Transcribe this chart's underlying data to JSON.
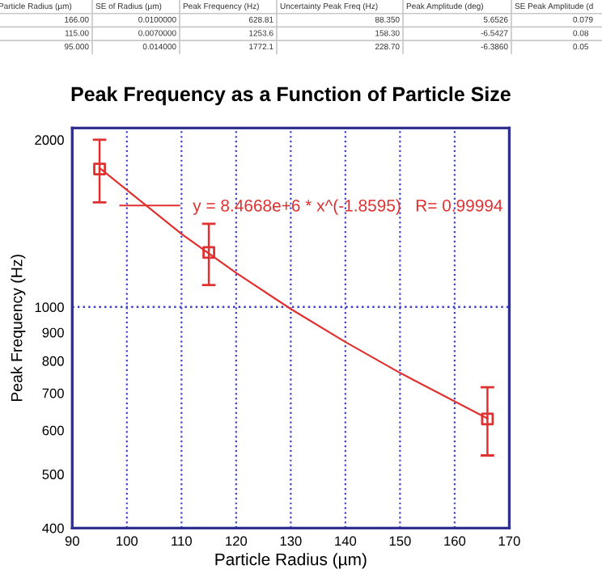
{
  "chart_data": [
    {
      "type": "other",
      "categories": [
        "Particle Radius (µm)",
        "SE of Radius (µm)",
        "Peak Frequency (Hz)",
        "Uncertainty Peak Freq (Hz)",
        "Peak Amplitude (deg)",
        "SE Peak Amplitude (d"
      ],
      "cell_labels": [
        [
          "166.00",
          "0.0100000",
          "628.81",
          "88.350",
          "5.6526",
          "0.079"
        ],
        [
          "115.00",
          "0.0070000",
          "1253.6",
          "158.30",
          "-6.5427",
          "0.08"
        ],
        [
          "95.000",
          "0.014000",
          "1772.1",
          "228.70",
          "-6.3860",
          "0.05"
        ]
      ]
    },
    {
      "type": "scatter",
      "title": "Peak Frequency as a Function of Particle Size",
      "xlabel": "Particle Radius (µm)",
      "ylabel": "Peak Frequency (Hz)",
      "log": "y",
      "xlim": [
        90,
        170
      ],
      "xticks": [
        90,
        100,
        110,
        120,
        130,
        140,
        150,
        160,
        170
      ],
      "ylim": [
        400,
        2100
      ],
      "yticks": [
        400,
        500,
        600,
        700,
        800,
        900,
        1000,
        2000
      ],
      "grid": "x",
      "legend": "top right",
      "ref_lines": [
        {
          "axis": "y",
          "value": 1000,
          "color": "#4040d0",
          "line_style": "dotted"
        }
      ],
      "series": [
        {
          "type": "scatter",
          "color": "#e03030",
          "marker": "square",
          "x": [
            166,
            115,
            95
          ],
          "values": [
            628.81,
            1253.6,
            1772.1
          ],
          "errors": [
            88.35,
            158.3,
            228.7
          ]
        },
        {
          "type": "line",
          "name": "y = 8.4668e+6 * x^(-1.8595)   R= 0.99994",
          "color": "#e03030",
          "marker": "none",
          "line_style": "solid",
          "x": [
            95,
            110,
            120,
            130,
            140,
            150,
            166
          ],
          "values": [
            1779,
            1354,
            1152,
            992,
            865,
            761,
            630
          ]
        }
      ]
    }
  ]
}
